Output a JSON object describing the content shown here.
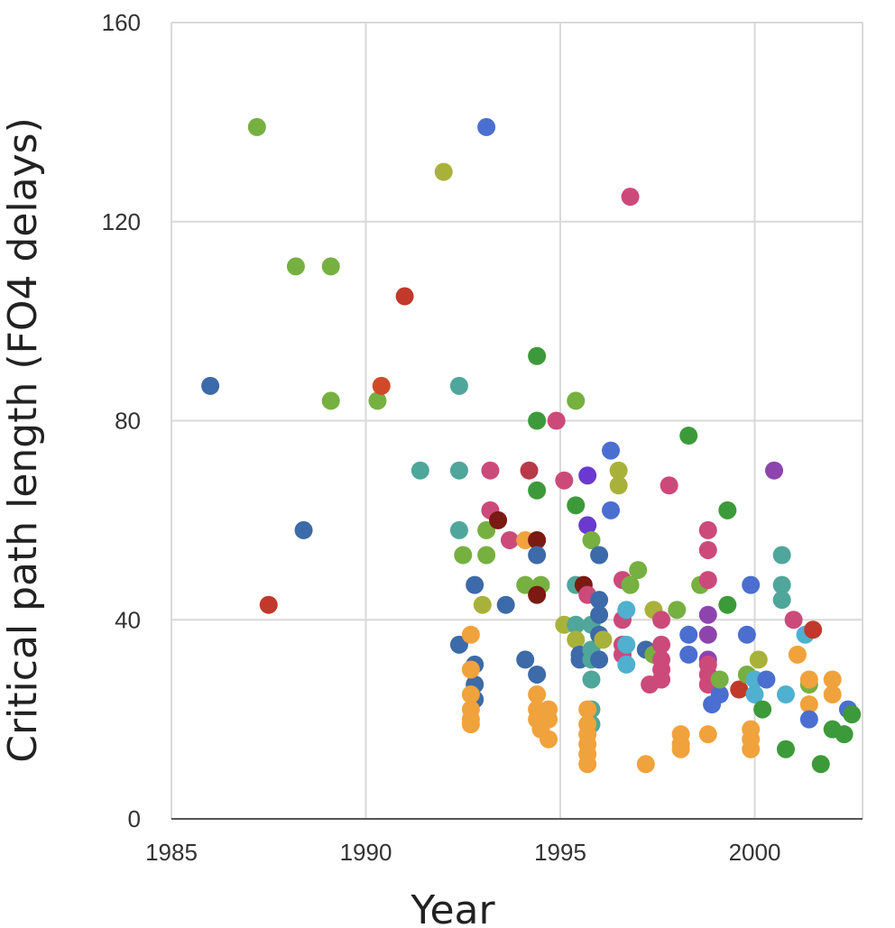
{
  "chart_data": {
    "type": "scatter",
    "title": "",
    "xlabel": "Year",
    "ylabel": "Critical path length (FO4 delays)",
    "xlim": [
      1985,
      2003
    ],
    "ylim": [
      0,
      160
    ],
    "x_ticks": [
      "1985",
      "1990",
      "1995",
      "2000"
    ],
    "y_ticks": [
      "0",
      "40",
      "80",
      "120",
      "160"
    ],
    "grid": true,
    "legend": "none",
    "points": [
      {
        "x": 1986.0,
        "y": 87,
        "color": "#3d6aa8"
      },
      {
        "x": 1987.2,
        "y": 139,
        "color": "#76b041"
      },
      {
        "x": 1987.5,
        "y": 43,
        "color": "#c0392b"
      },
      {
        "x": 1988.2,
        "y": 111,
        "color": "#76b041"
      },
      {
        "x": 1988.4,
        "y": 58,
        "color": "#3d6aa8"
      },
      {
        "x": 1989.1,
        "y": 111,
        "color": "#76b041"
      },
      {
        "x": 1989.1,
        "y": 84,
        "color": "#76b041"
      },
      {
        "x": 1990.3,
        "y": 84,
        "color": "#76b041"
      },
      {
        "x": 1990.4,
        "y": 87,
        "color": "#d04a2a"
      },
      {
        "x": 1991.0,
        "y": 105,
        "color": "#c0392b"
      },
      {
        "x": 1991.4,
        "y": 70,
        "color": "#4fa69a"
      },
      {
        "x": 1992.0,
        "y": 130,
        "color": "#a8b23a"
      },
      {
        "x": 1992.4,
        "y": 87,
        "color": "#4fa69a"
      },
      {
        "x": 1992.4,
        "y": 70,
        "color": "#4fa69a"
      },
      {
        "x": 1992.4,
        "y": 58,
        "color": "#4fa69a"
      },
      {
        "x": 1992.5,
        "y": 53,
        "color": "#76b041"
      },
      {
        "x": 1992.4,
        "y": 35,
        "color": "#3d6aa8"
      },
      {
        "x": 1992.8,
        "y": 47,
        "color": "#3d6aa8"
      },
      {
        "x": 1993.0,
        "y": 43,
        "color": "#a8b23a"
      },
      {
        "x": 1992.8,
        "y": 31,
        "color": "#3d6aa8"
      },
      {
        "x": 1992.8,
        "y": 27,
        "color": "#3d6aa8"
      },
      {
        "x": 1992.8,
        "y": 24,
        "color": "#3d6aa8"
      },
      {
        "x": 1992.7,
        "y": 37,
        "color": "#f0a23c"
      },
      {
        "x": 1992.7,
        "y": 30,
        "color": "#f0a23c"
      },
      {
        "x": 1992.7,
        "y": 25,
        "color": "#f0a23c"
      },
      {
        "x": 1992.7,
        "y": 22,
        "color": "#f0a23c"
      },
      {
        "x": 1992.7,
        "y": 20,
        "color": "#f0a23c"
      },
      {
        "x": 1992.7,
        "y": 19,
        "color": "#f0a23c"
      },
      {
        "x": 1993.1,
        "y": 139,
        "color": "#4a6fd0"
      },
      {
        "x": 1993.2,
        "y": 70,
        "color": "#cc4a7a"
      },
      {
        "x": 1993.2,
        "y": 62,
        "color": "#cc4a7a"
      },
      {
        "x": 1993.1,
        "y": 58,
        "color": "#76b041"
      },
      {
        "x": 1993.1,
        "y": 53,
        "color": "#76b041"
      },
      {
        "x": 1993.4,
        "y": 60,
        "color": "#7a1a12"
      },
      {
        "x": 1993.7,
        "y": 56,
        "color": "#cc4a7a"
      },
      {
        "x": 1993.6,
        "y": 43,
        "color": "#3d6aa8"
      },
      {
        "x": 1994.2,
        "y": 70,
        "color": "#b83a4a"
      },
      {
        "x": 1994.1,
        "y": 56,
        "color": "#f0a23c"
      },
      {
        "x": 1994.1,
        "y": 47,
        "color": "#76b041"
      },
      {
        "x": 1994.1,
        "y": 32,
        "color": "#3d6aa8"
      },
      {
        "x": 1994.4,
        "y": 93,
        "color": "#3d9a3a"
      },
      {
        "x": 1994.4,
        "y": 80,
        "color": "#3d9a3a"
      },
      {
        "x": 1994.4,
        "y": 66,
        "color": "#3d9a3a"
      },
      {
        "x": 1994.4,
        "y": 56,
        "color": "#7a1a12"
      },
      {
        "x": 1994.4,
        "y": 53,
        "color": "#3d6aa8"
      },
      {
        "x": 1994.5,
        "y": 47,
        "color": "#76b041"
      },
      {
        "x": 1994.4,
        "y": 45,
        "color": "#7a1a12"
      },
      {
        "x": 1994.4,
        "y": 29,
        "color": "#3d6aa8"
      },
      {
        "x": 1994.4,
        "y": 25,
        "color": "#f0a23c"
      },
      {
        "x": 1994.4,
        "y": 22,
        "color": "#f0a23c"
      },
      {
        "x": 1994.4,
        "y": 20,
        "color": "#f0a23c"
      },
      {
        "x": 1994.5,
        "y": 18,
        "color": "#f0a23c"
      },
      {
        "x": 1994.7,
        "y": 22,
        "color": "#f0a23c"
      },
      {
        "x": 1994.7,
        "y": 20,
        "color": "#f0a23c"
      },
      {
        "x": 1994.7,
        "y": 16,
        "color": "#f0a23c"
      },
      {
        "x": 1994.9,
        "y": 80,
        "color": "#cc4a7a"
      },
      {
        "x": 1995.1,
        "y": 68,
        "color": "#cc4a7a"
      },
      {
        "x": 1995.1,
        "y": 39,
        "color": "#a8b23a"
      },
      {
        "x": 1995.4,
        "y": 84,
        "color": "#76b041"
      },
      {
        "x": 1995.4,
        "y": 63,
        "color": "#3d9a3a"
      },
      {
        "x": 1995.4,
        "y": 47,
        "color": "#4fa69a"
      },
      {
        "x": 1995.4,
        "y": 39,
        "color": "#4fa69a"
      },
      {
        "x": 1995.4,
        "y": 36,
        "color": "#a8b23a"
      },
      {
        "x": 1995.5,
        "y": 33,
        "color": "#3d6aa8"
      },
      {
        "x": 1995.5,
        "y": 32,
        "color": "#3d6aa8"
      },
      {
        "x": 1995.6,
        "y": 47,
        "color": "#7a1a12"
      },
      {
        "x": 1995.7,
        "y": 69,
        "color": "#6a3ad0"
      },
      {
        "x": 1995.7,
        "y": 59,
        "color": "#6a3ad0"
      },
      {
        "x": 1995.8,
        "y": 56,
        "color": "#76b041"
      },
      {
        "x": 1995.7,
        "y": 45,
        "color": "#cc4a7a"
      },
      {
        "x": 1995.8,
        "y": 39,
        "color": "#4fa69a"
      },
      {
        "x": 1995.8,
        "y": 34,
        "color": "#4fa69a"
      },
      {
        "x": 1995.8,
        "y": 32,
        "color": "#4fa69a"
      },
      {
        "x": 1995.8,
        "y": 28,
        "color": "#4fa69a"
      },
      {
        "x": 1995.8,
        "y": 22,
        "color": "#4fa69a"
      },
      {
        "x": 1995.8,
        "y": 19,
        "color": "#4fa69a"
      },
      {
        "x": 1995.7,
        "y": 22,
        "color": "#f0a23c"
      },
      {
        "x": 1995.7,
        "y": 19,
        "color": "#f0a23c"
      },
      {
        "x": 1995.7,
        "y": 17,
        "color": "#f0a23c"
      },
      {
        "x": 1995.7,
        "y": 15,
        "color": "#f0a23c"
      },
      {
        "x": 1995.7,
        "y": 13,
        "color": "#f0a23c"
      },
      {
        "x": 1995.7,
        "y": 11,
        "color": "#f0a23c"
      },
      {
        "x": 1996.0,
        "y": 53,
        "color": "#3d6aa8"
      },
      {
        "x": 1996.0,
        "y": 44,
        "color": "#3d6aa8"
      },
      {
        "x": 1996.0,
        "y": 41,
        "color": "#3d6aa8"
      },
      {
        "x": 1996.0,
        "y": 37,
        "color": "#3d6aa8"
      },
      {
        "x": 1996.0,
        "y": 32,
        "color": "#3d6aa8"
      },
      {
        "x": 1996.3,
        "y": 74,
        "color": "#4a6fd0"
      },
      {
        "x": 1996.3,
        "y": 62,
        "color": "#4a6fd0"
      },
      {
        "x": 1996.1,
        "y": 36,
        "color": "#a8b23a"
      },
      {
        "x": 1996.5,
        "y": 70,
        "color": "#a8b23a"
      },
      {
        "x": 1996.5,
        "y": 67,
        "color": "#a8b23a"
      },
      {
        "x": 1996.6,
        "y": 48,
        "color": "#cc4a7a"
      },
      {
        "x": 1996.6,
        "y": 40,
        "color": "#cc4a7a"
      },
      {
        "x": 1996.6,
        "y": 35,
        "color": "#cc4a7a"
      },
      {
        "x": 1996.6,
        "y": 33,
        "color": "#cc4a7a"
      },
      {
        "x": 1996.8,
        "y": 47,
        "color": "#76b041"
      },
      {
        "x": 1996.7,
        "y": 42,
        "color": "#4fb0d0"
      },
      {
        "x": 1996.7,
        "y": 35,
        "color": "#4fb0d0"
      },
      {
        "x": 1996.7,
        "y": 31,
        "color": "#4fb0d0"
      },
      {
        "x": 1996.8,
        "y": 125,
        "color": "#cc4a7a"
      },
      {
        "x": 1997.0,
        "y": 50,
        "color": "#76b041"
      },
      {
        "x": 1997.2,
        "y": 34,
        "color": "#3d6aa8"
      },
      {
        "x": 1997.3,
        "y": 27,
        "color": "#cc4a7a"
      },
      {
        "x": 1997.4,
        "y": 42,
        "color": "#a8b23a"
      },
      {
        "x": 1997.4,
        "y": 33,
        "color": "#76b041"
      },
      {
        "x": 1997.2,
        "y": 11,
        "color": "#f0a23c"
      },
      {
        "x": 1997.6,
        "y": 40,
        "color": "#cc4a7a"
      },
      {
        "x": 1997.6,
        "y": 35,
        "color": "#cc4a7a"
      },
      {
        "x": 1997.6,
        "y": 32,
        "color": "#cc4a7a"
      },
      {
        "x": 1997.6,
        "y": 30,
        "color": "#cc4a7a"
      },
      {
        "x": 1997.6,
        "y": 28,
        "color": "#cc4a7a"
      },
      {
        "x": 1997.8,
        "y": 67,
        "color": "#cc4a7a"
      },
      {
        "x": 1998.0,
        "y": 42,
        "color": "#76b041"
      },
      {
        "x": 1998.1,
        "y": 17,
        "color": "#f0a23c"
      },
      {
        "x": 1998.1,
        "y": 15,
        "color": "#f0a23c"
      },
      {
        "x": 1998.1,
        "y": 14,
        "color": "#f0a23c"
      },
      {
        "x": 1998.3,
        "y": 37,
        "color": "#4a6fd0"
      },
      {
        "x": 1998.3,
        "y": 33,
        "color": "#4a6fd0"
      },
      {
        "x": 1998.3,
        "y": 77,
        "color": "#3d9a3a"
      },
      {
        "x": 1998.6,
        "y": 47,
        "color": "#76b041"
      },
      {
        "x": 1998.8,
        "y": 58,
        "color": "#cc4a7a"
      },
      {
        "x": 1998.8,
        "y": 54,
        "color": "#cc4a7a"
      },
      {
        "x": 1998.8,
        "y": 48,
        "color": "#cc4a7a"
      },
      {
        "x": 1998.8,
        "y": 41,
        "color": "#8e44ad"
      },
      {
        "x": 1998.8,
        "y": 37,
        "color": "#8e44ad"
      },
      {
        "x": 1998.8,
        "y": 32,
        "color": "#8e44ad"
      },
      {
        "x": 1998.8,
        "y": 31,
        "color": "#cc4a7a"
      },
      {
        "x": 1998.8,
        "y": 29,
        "color": "#cc4a7a"
      },
      {
        "x": 1998.8,
        "y": 27,
        "color": "#cc4a7a"
      },
      {
        "x": 1998.9,
        "y": 23,
        "color": "#4a6fd0"
      },
      {
        "x": 1998.8,
        "y": 17,
        "color": "#f0a23c"
      },
      {
        "x": 1999.1,
        "y": 25,
        "color": "#4a6fd0"
      },
      {
        "x": 1999.1,
        "y": 28,
        "color": "#76b041"
      },
      {
        "x": 1999.3,
        "y": 62,
        "color": "#3d9a3a"
      },
      {
        "x": 1999.3,
        "y": 43,
        "color": "#3d9a3a"
      },
      {
        "x": 1999.6,
        "y": 26,
        "color": "#c0392b"
      },
      {
        "x": 1999.8,
        "y": 29,
        "color": "#76b041"
      },
      {
        "x": 1999.9,
        "y": 47,
        "color": "#4a6fd0"
      },
      {
        "x": 1999.8,
        "y": 37,
        "color": "#4a6fd0"
      },
      {
        "x": 1999.9,
        "y": 18,
        "color": "#f0a23c"
      },
      {
        "x": 1999.9,
        "y": 16,
        "color": "#f0a23c"
      },
      {
        "x": 1999.9,
        "y": 14,
        "color": "#f0a23c"
      },
      {
        "x": 2000.0,
        "y": 28,
        "color": "#4fb0d0"
      },
      {
        "x": 2000.0,
        "y": 25,
        "color": "#4fb0d0"
      },
      {
        "x": 2000.1,
        "y": 32,
        "color": "#a8b23a"
      },
      {
        "x": 2000.2,
        "y": 22,
        "color": "#3d9a3a"
      },
      {
        "x": 2000.3,
        "y": 28,
        "color": "#4a6fd0"
      },
      {
        "x": 2000.5,
        "y": 70,
        "color": "#8e44ad"
      },
      {
        "x": 2000.7,
        "y": 53,
        "color": "#4fa69a"
      },
      {
        "x": 2000.7,
        "y": 47,
        "color": "#4fa69a"
      },
      {
        "x": 2000.7,
        "y": 44,
        "color": "#4fa69a"
      },
      {
        "x": 2000.8,
        "y": 25,
        "color": "#4fb0d0"
      },
      {
        "x": 2000.8,
        "y": 14,
        "color": "#3d9a3a"
      },
      {
        "x": 2001.0,
        "y": 40,
        "color": "#cc4a7a"
      },
      {
        "x": 2001.1,
        "y": 33,
        "color": "#f0a23c"
      },
      {
        "x": 2001.3,
        "y": 37,
        "color": "#4fb0d0"
      },
      {
        "x": 2001.4,
        "y": 27,
        "color": "#76b041"
      },
      {
        "x": 2001.4,
        "y": 28,
        "color": "#f0a23c"
      },
      {
        "x": 2001.4,
        "y": 23,
        "color": "#f0a23c"
      },
      {
        "x": 2001.4,
        "y": 20,
        "color": "#4a6fd0"
      },
      {
        "x": 2001.5,
        "y": 38,
        "color": "#c0392b"
      },
      {
        "x": 2001.7,
        "y": 11,
        "color": "#3d9a3a"
      },
      {
        "x": 2002.0,
        "y": 28,
        "color": "#f0a23c"
      },
      {
        "x": 2002.0,
        "y": 25,
        "color": "#f0a23c"
      },
      {
        "x": 2002.0,
        "y": 18,
        "color": "#3d9a3a"
      },
      {
        "x": 2002.3,
        "y": 17,
        "color": "#3d9a3a"
      },
      {
        "x": 2002.4,
        "y": 22,
        "color": "#4a6fd0"
      },
      {
        "x": 2002.5,
        "y": 21,
        "color": "#3d9a3a"
      }
    ]
  }
}
